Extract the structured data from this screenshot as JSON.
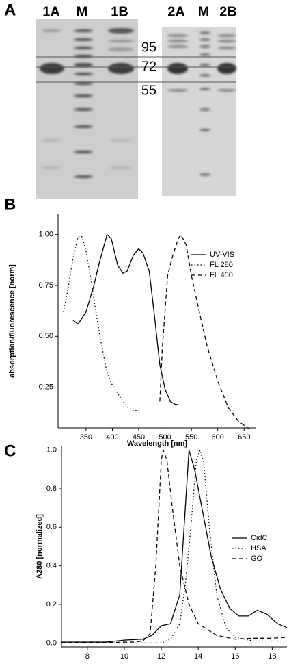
{
  "panel_label": "A",
  "gel_lanes": [
    "1A",
    "M",
    "1B",
    "2A",
    "M",
    "2B"
  ],
  "markers": [
    95,
    72,
    55
  ],
  "chart_data": [
    {
      "type": "line",
      "panel_label": "B",
      "xlabel": "Wavelength [nm]",
      "ylabel": "absorption/fluorescence [norm]",
      "xlim": [
        297,
        673
      ],
      "ylim": [
        0.05,
        1.1
      ],
      "xticks": [
        350,
        400,
        450,
        500,
        550,
        600,
        650
      ],
      "yticks": [
        0.25,
        {
          "value": 0.5,
          "label": "0.50"
        },
        0.75,
        {
          "value": 1,
          "label": "1.00"
        }
      ],
      "legend": "upper right",
      "series": [
        {
          "name": "UV-VIS",
          "color": "#000000",
          "line_style": "solid",
          "x": [
            325,
            335,
            350,
            365,
            375,
            390,
            398,
            410,
            420,
            428,
            440,
            450,
            458,
            470,
            480,
            490,
            500,
            510,
            520,
            525
          ],
          "values": [
            0.58,
            0.56,
            0.62,
            0.75,
            0.86,
            1.0,
            0.98,
            0.85,
            0.81,
            0.82,
            0.9,
            0.93,
            0.91,
            0.82,
            0.6,
            0.36,
            0.24,
            0.18,
            0.165,
            0.165
          ]
        },
        {
          "name": "FL 280",
          "color": "#000000",
          "line_style": "dotted",
          "x": [
            307,
            315,
            325,
            335,
            342,
            350,
            360,
            370,
            380,
            390,
            400,
            410,
            420,
            430,
            440,
            450
          ],
          "values": [
            0.62,
            0.72,
            0.88,
            0.99,
            0.99,
            0.92,
            0.77,
            0.6,
            0.45,
            0.32,
            0.26,
            0.22,
            0.18,
            0.15,
            0.135,
            0.135
          ]
        },
        {
          "name": "FL 450",
          "color": "#000000",
          "line_style": "dashed",
          "x": [
            490,
            495,
            505,
            515,
            525,
            530,
            540,
            550,
            565,
            580,
            600,
            620,
            640,
            660
          ],
          "values": [
            0.18,
            0.45,
            0.8,
            0.9,
            0.98,
            1.0,
            0.95,
            0.8,
            0.62,
            0.45,
            0.28,
            0.15,
            0.08,
            0.045
          ]
        }
      ]
    },
    {
      "type": "line",
      "panel_label": "C",
      "ylabel": "A280 [normalized]",
      "xlim": [
        6.6,
        18.8
      ],
      "ylim": [
        -0.02,
        1.02
      ],
      "xticks": [
        8,
        10,
        12,
        14,
        16,
        18
      ],
      "yticks": [
        {
          "value": 0,
          "label": "0.0"
        },
        0.2,
        0.4,
        0.6,
        0.8,
        {
          "value": 1,
          "label": "1.0"
        }
      ],
      "legend": "right",
      "series": [
        {
          "name": "CidC",
          "color": "#000000",
          "line_style": "solid",
          "x": [
            6.6,
            9,
            10,
            11,
            11.5,
            12,
            12.5,
            13,
            13.3,
            13.5,
            13.8,
            14.2,
            14.7,
            15.2,
            15.7,
            16.2,
            16.7,
            17.2,
            17.7,
            18.3,
            18.8
          ],
          "values": [
            0.005,
            0.005,
            0.015,
            0.02,
            0.04,
            0.09,
            0.1,
            0.25,
            0.7,
            1.0,
            0.9,
            0.7,
            0.45,
            0.28,
            0.18,
            0.14,
            0.14,
            0.17,
            0.15,
            0.1,
            0.08
          ]
        },
        {
          "name": "HSA",
          "color": "#000000",
          "line_style": "dotted",
          "x": [
            6.6,
            12,
            12.5,
            13,
            13.3,
            13.6,
            13.9,
            14.1,
            14.3,
            14.6,
            15,
            15.5,
            16,
            17,
            18.8
          ],
          "values": [
            0,
            0,
            0.02,
            0.1,
            0.3,
            0.6,
            0.95,
            1.0,
            0.93,
            0.6,
            0.25,
            0.08,
            0.03,
            0.01,
            0.01
          ]
        },
        {
          "name": "GO",
          "color": "#000000",
          "line_style": "dashed",
          "x": [
            6.6,
            10.5,
            11,
            11.4,
            11.7,
            12,
            12.1,
            12.3,
            12.6,
            13,
            13.5,
            14,
            15,
            16,
            17,
            18,
            18.8
          ],
          "values": [
            0,
            0.005,
            0.01,
            0.05,
            0.4,
            0.95,
            1.0,
            0.95,
            0.7,
            0.4,
            0.2,
            0.1,
            0.04,
            0.02,
            0.025,
            0.025,
            0.03
          ]
        }
      ]
    }
  ]
}
